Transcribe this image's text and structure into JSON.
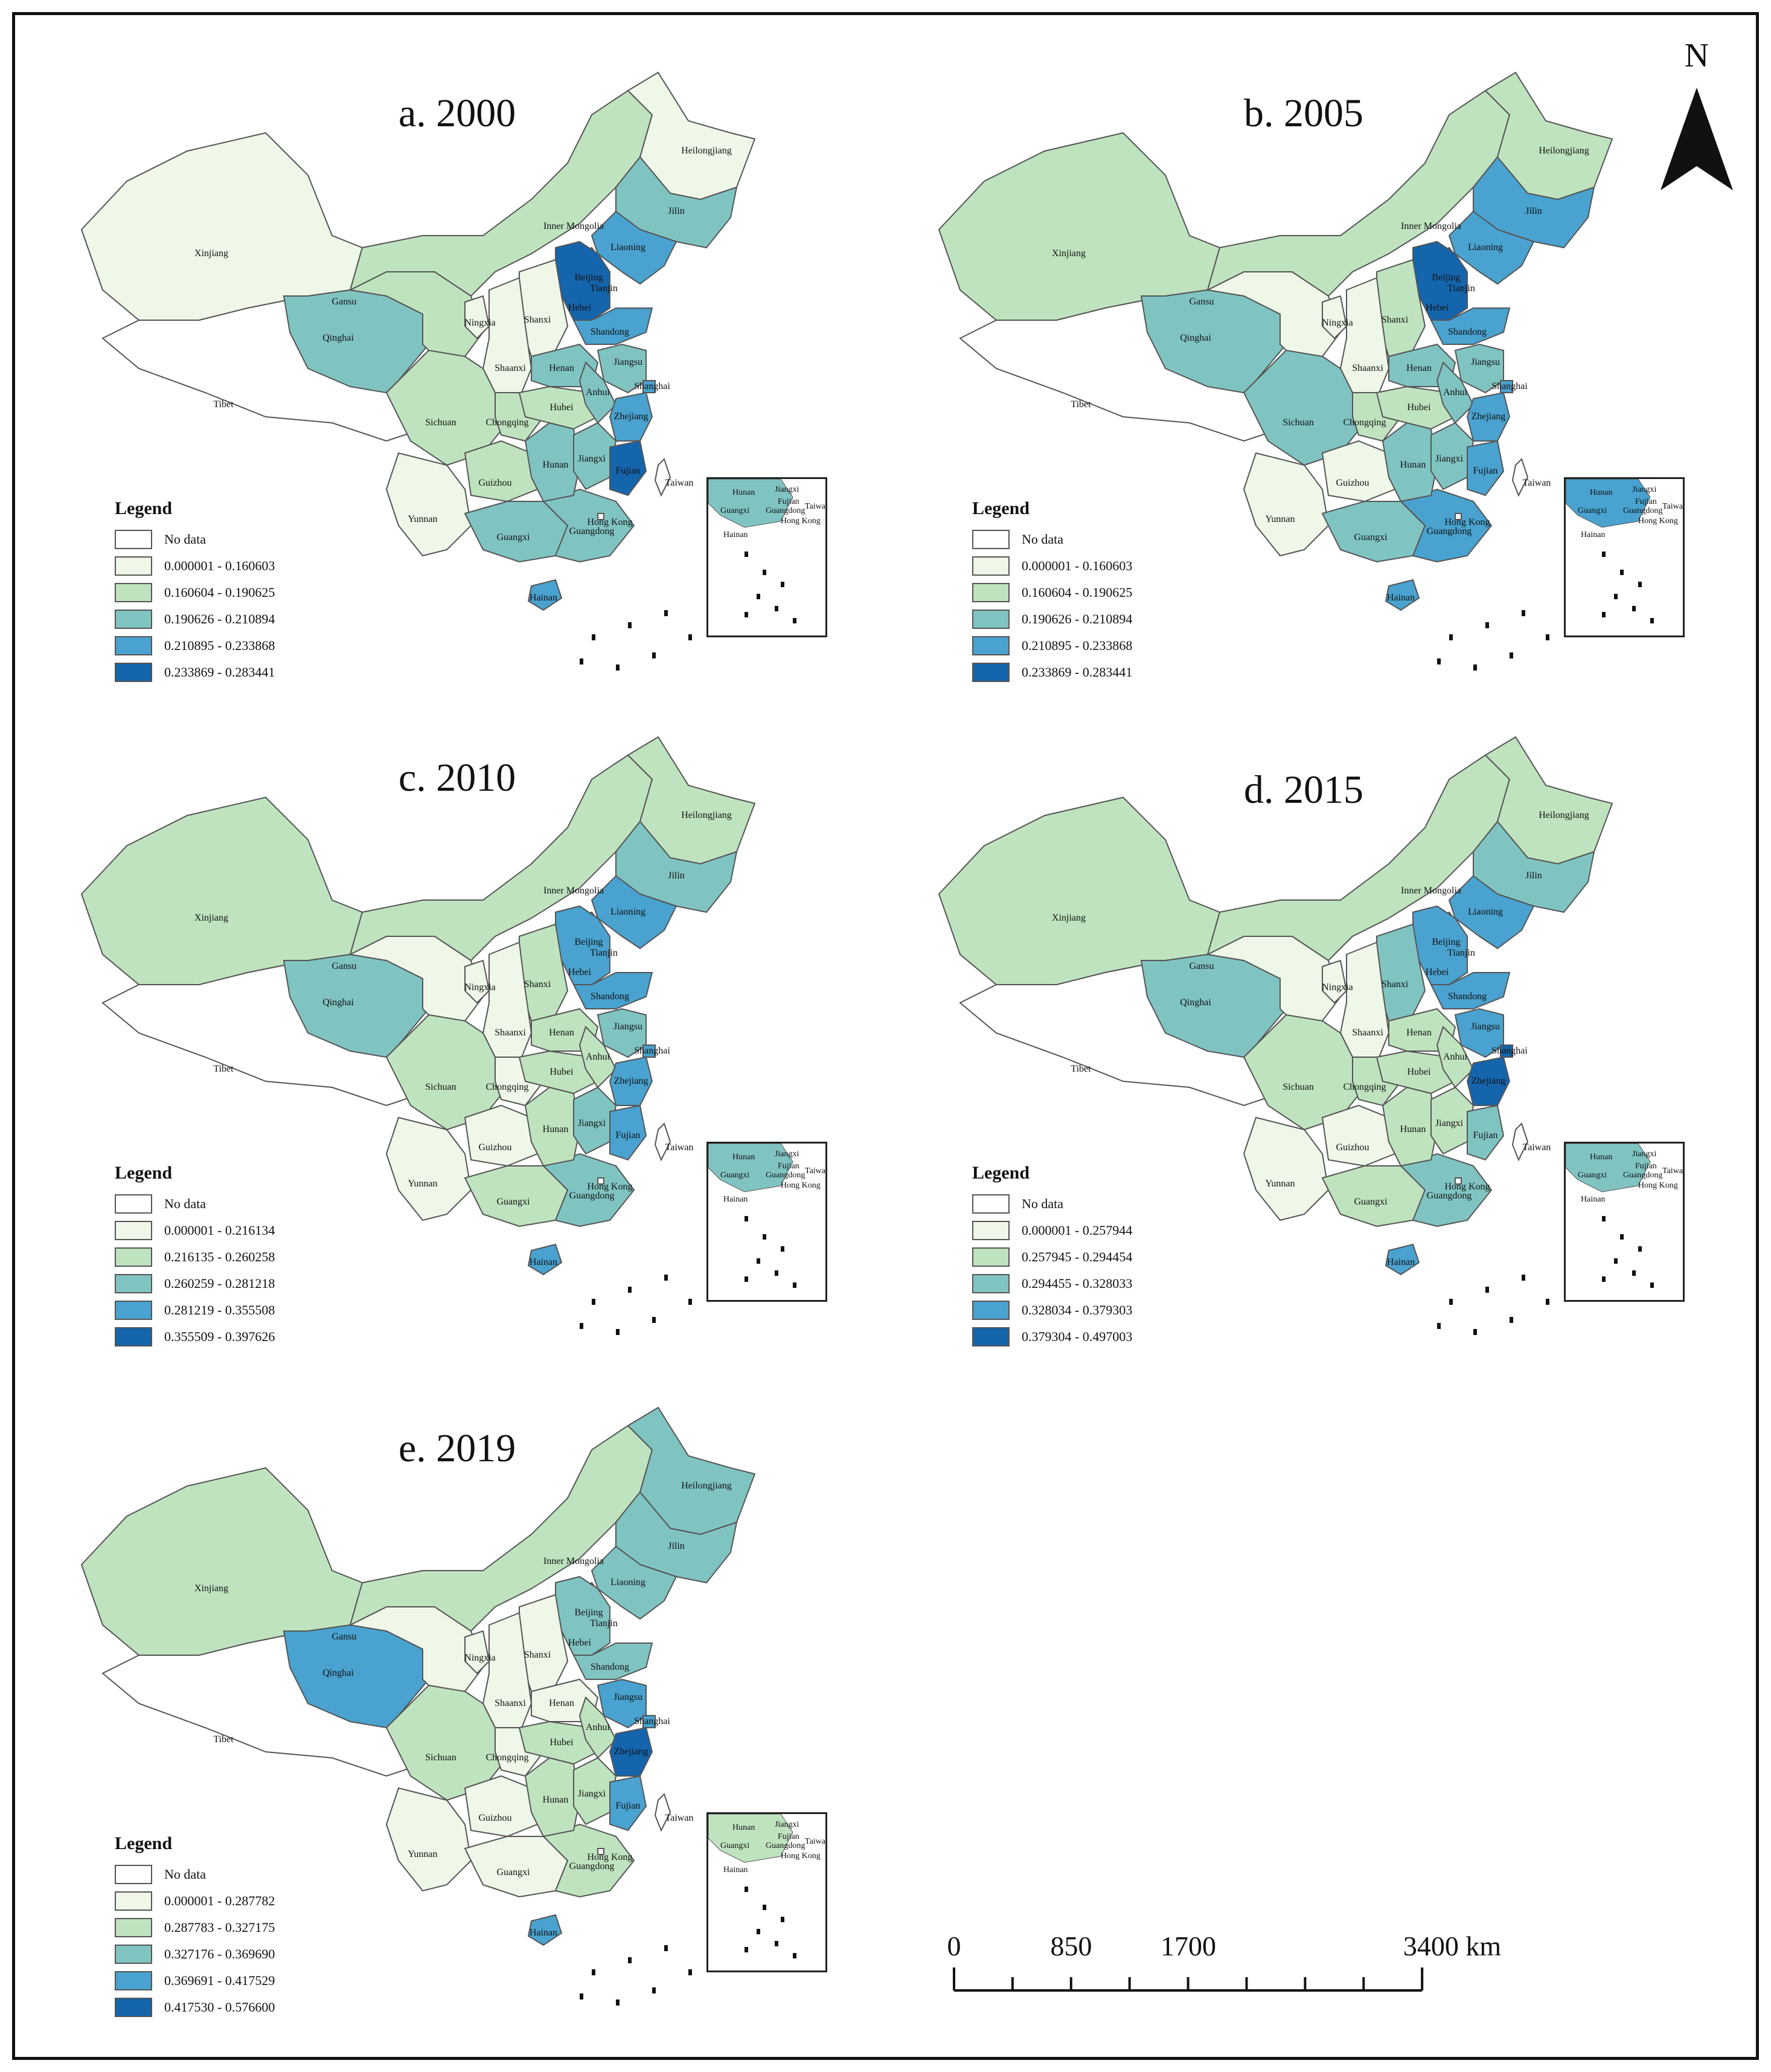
{
  "map": {
    "north_label": "N",
    "scale_bar": {
      "labels": [
        "0",
        "850",
        "1700",
        "3400 km"
      ],
      "values": [
        0,
        850,
        1700,
        3400
      ],
      "unit": "km"
    }
  },
  "panels": [
    {
      "title": "a. 2000",
      "legend_title": "Legend",
      "no_data_label": "No data",
      "classes": [
        "0.000001 - 0.160603",
        "0.160604 - 0.190625",
        "0.190626 - 0.210894",
        "0.210895 - 0.233868",
        "0.233869 - 0.283441"
      ],
      "province_class": {
        "Xinjiang": 1,
        "Tibet": 0,
        "Qinghai": 3,
        "Gansu": 2,
        "Inner Mongolia": 2,
        "Heilongjiang": 1,
        "Jilin": 3,
        "Liaoning": 4,
        "Beijing": 5,
        "Tianjin": 5,
        "Hebei": 5,
        "Shanxi": 1,
        "Ningxia": 1,
        "Shaanxi": 1,
        "Sichuan": 2,
        "Chongqing": 2,
        "Yunnan": 1,
        "Guizhou": 2,
        "Guangxi": 3,
        "Guangdong": 3,
        "Hainan": 4,
        "Hunan": 3,
        "Hubei": 2,
        "Henan": 3,
        "Shandong": 4,
        "Jiangsu": 3,
        "Anhui": 3,
        "Shanghai": 4,
        "Zhejiang": 4,
        "Jiangxi": 3,
        "Fujian": 5,
        "Taiwan": 0,
        "Hong Kong": 0
      }
    },
    {
      "title": "b. 2005",
      "legend_title": "Legend",
      "no_data_label": "No data",
      "classes": [
        "0.000001 - 0.160603",
        "0.160604 - 0.190625",
        "0.190626 - 0.210894",
        "0.210895 - 0.233868",
        "0.233869 - 0.283441"
      ],
      "province_class": {
        "Xinjiang": 2,
        "Tibet": 0,
        "Qinghai": 3,
        "Gansu": 1,
        "Inner Mongolia": 2,
        "Heilongjiang": 2,
        "Jilin": 4,
        "Liaoning": 4,
        "Beijing": 5,
        "Tianjin": 5,
        "Hebei": 5,
        "Shanxi": 2,
        "Ningxia": 1,
        "Shaanxi": 1,
        "Sichuan": 3,
        "Chongqing": 2,
        "Yunnan": 1,
        "Guizhou": 1,
        "Guangxi": 3,
        "Guangdong": 4,
        "Hainan": 4,
        "Hunan": 3,
        "Hubei": 2,
        "Henan": 3,
        "Shandong": 4,
        "Jiangsu": 3,
        "Anhui": 3,
        "Shanghai": 4,
        "Zhejiang": 4,
        "Jiangxi": 3,
        "Fujian": 4,
        "Taiwan": 0,
        "Hong Kong": 0
      }
    },
    {
      "title": "c. 2010",
      "legend_title": "Legend",
      "no_data_label": "No data",
      "classes": [
        "0.000001 - 0.216134",
        "0.216135 - 0.260258",
        "0.260259 - 0.281218",
        "0.281219 - 0.355508",
        "0.355509 - 0.397626"
      ],
      "province_class": {
        "Xinjiang": 2,
        "Tibet": 0,
        "Qinghai": 3,
        "Gansu": 1,
        "Inner Mongolia": 2,
        "Heilongjiang": 2,
        "Jilin": 3,
        "Liaoning": 4,
        "Beijing": 4,
        "Tianjin": 4,
        "Hebei": 4,
        "Shanxi": 2,
        "Ningxia": 1,
        "Shaanxi": 1,
        "Sichuan": 2,
        "Chongqing": 1,
        "Yunnan": 1,
        "Guizhou": 1,
        "Guangxi": 2,
        "Guangdong": 3,
        "Hainan": 4,
        "Hunan": 2,
        "Hubei": 2,
        "Henan": 2,
        "Shandong": 4,
        "Jiangsu": 3,
        "Anhui": 2,
        "Shanghai": 4,
        "Zhejiang": 4,
        "Jiangxi": 3,
        "Fujian": 4,
        "Taiwan": 0,
        "Hong Kong": 0
      }
    },
    {
      "title": "d. 2015",
      "legend_title": "Legend",
      "no_data_label": "No data",
      "classes": [
        "0.000001 - 0.257944",
        "0.257945 - 0.294454",
        "0.294455 - 0.328033",
        "0.328034 - 0.379303",
        "0.379304 - 0.497003"
      ],
      "province_class": {
        "Xinjiang": 2,
        "Tibet": 0,
        "Qinghai": 3,
        "Gansu": 1,
        "Inner Mongolia": 2,
        "Heilongjiang": 2,
        "Jilin": 3,
        "Liaoning": 4,
        "Beijing": 4,
        "Tianjin": 4,
        "Hebei": 4,
        "Shanxi": 3,
        "Ningxia": 1,
        "Shaanxi": 1,
        "Sichuan": 2,
        "Chongqing": 2,
        "Yunnan": 1,
        "Guizhou": 1,
        "Guangxi": 2,
        "Guangdong": 3,
        "Hainan": 4,
        "Hunan": 2,
        "Hubei": 2,
        "Henan": 2,
        "Shandong": 4,
        "Jiangsu": 4,
        "Anhui": 2,
        "Shanghai": 5,
        "Zhejiang": 5,
        "Jiangxi": 2,
        "Fujian": 3,
        "Taiwan": 0,
        "Hong Kong": 0
      }
    },
    {
      "title": "e. 2019",
      "legend_title": "Legend",
      "no_data_label": "No data",
      "classes": [
        "0.000001 - 0.287782",
        "0.287783 - 0.327175",
        "0.327176 - 0.369690",
        "0.369691 - 0.417529",
        "0.417530 - 0.576600"
      ],
      "province_class": {
        "Xinjiang": 2,
        "Tibet": 0,
        "Qinghai": 4,
        "Gansu": 1,
        "Inner Mongolia": 2,
        "Heilongjiang": 3,
        "Jilin": 3,
        "Liaoning": 3,
        "Beijing": 5,
        "Tianjin": 4,
        "Hebei": 3,
        "Shanxi": 1,
        "Ningxia": 1,
        "Shaanxi": 1,
        "Sichuan": 2,
        "Chongqing": 1,
        "Yunnan": 1,
        "Guizhou": 1,
        "Guangxi": 1,
        "Guangdong": 2,
        "Hainan": 4,
        "Hunan": 2,
        "Hubei": 2,
        "Henan": 1,
        "Shandong": 3,
        "Jiangsu": 4,
        "Anhui": 2,
        "Shanghai": 4,
        "Zhejiang": 5,
        "Jiangxi": 2,
        "Fujian": 4,
        "Taiwan": 0,
        "Hong Kong": 0
      }
    }
  ],
  "inset_labels": [
    "Hunan",
    "Jiangxi",
    "Fujian",
    "Guangxi",
    "Guangdong",
    "Taiwan",
    "Hong Kong",
    "Hainan"
  ],
  "colors": {
    "no_data": "#ffffff",
    "class1": "#eef7e8",
    "class2": "#bfe3bf",
    "class3": "#80c4c2",
    "class4": "#49a2cf",
    "class5": "#1565ad"
  }
}
